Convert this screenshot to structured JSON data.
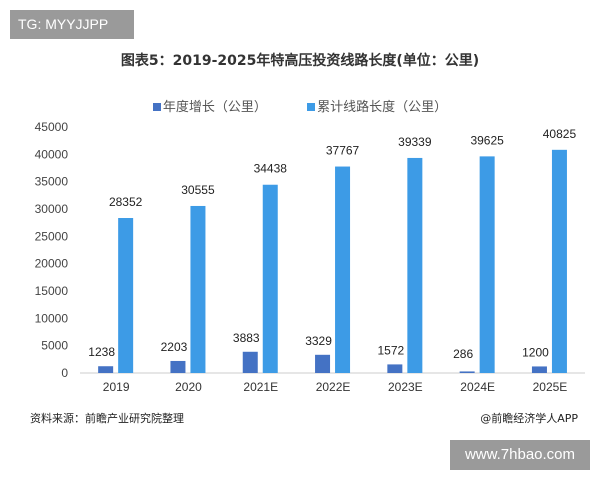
{
  "watermark_top": "TG: MYYJJPP",
  "watermark_bottom": "www.7hbao.com",
  "source": "资料来源：前瞻产业研究院整理",
  "credit": "@前瞻经济学人APP",
  "chart_data": {
    "type": "bar",
    "title": "图表5：2019-2025年特高压投资线路长度(单位：公里)",
    "categories": [
      "2019",
      "2020",
      "2021E",
      "2022E",
      "2023E",
      "2024E",
      "2025E"
    ],
    "series": [
      {
        "name": "年度增长（公里）",
        "color": "#4472c4",
        "values": [
          1238,
          2203,
          3883,
          3329,
          1572,
          286,
          1200
        ]
      },
      {
        "name": "累计线路长度（公里）",
        "color": "#3d9be6",
        "values": [
          28352,
          30555,
          34438,
          37767,
          39339,
          39625,
          40825
        ]
      }
    ],
    "ylim": [
      0,
      45000
    ],
    "yticks": [
      "0",
      "5000",
      "10000",
      "15000",
      "20000",
      "25000",
      "30000",
      "35000",
      "40000",
      "45000"
    ],
    "grid": false,
    "legend": "top"
  }
}
